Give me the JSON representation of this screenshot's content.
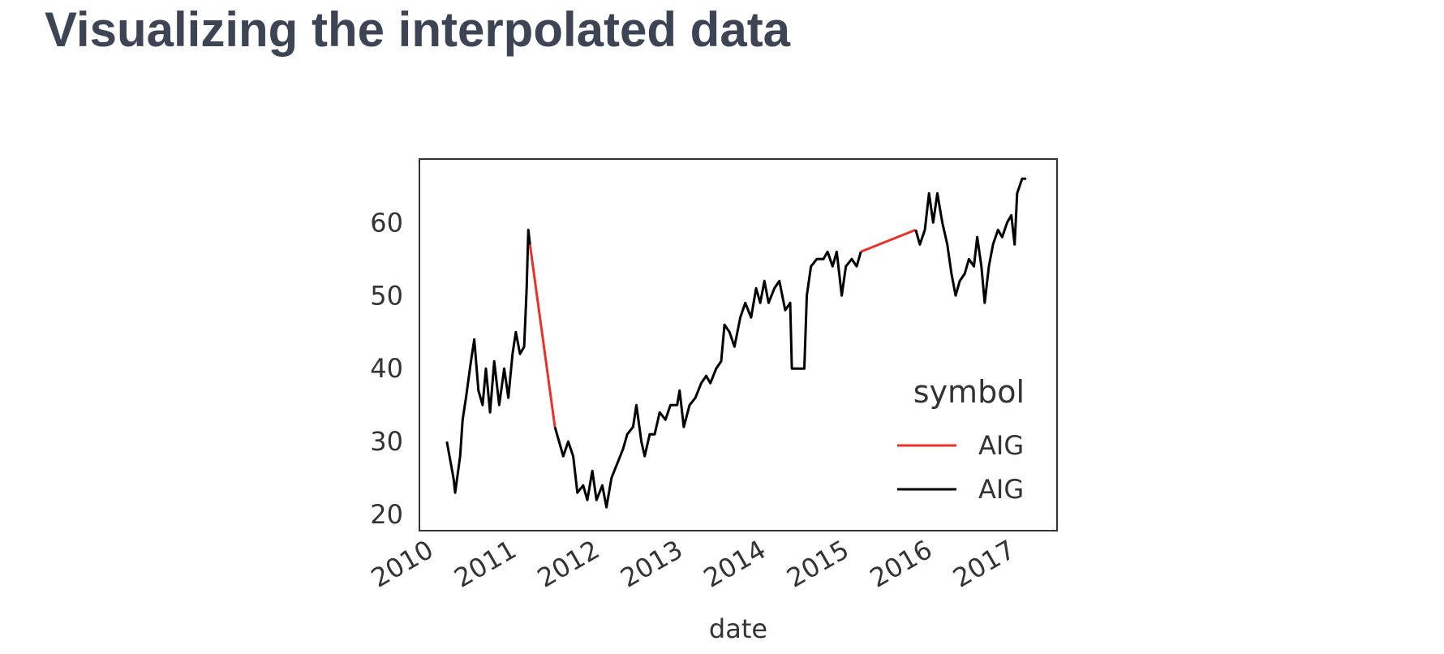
{
  "header": {
    "title": "Visualizing the interpolated data"
  },
  "chart_data": {
    "type": "line",
    "x_label": "date",
    "legend_title": "symbol",
    "legend": "lower right",
    "grid": false,
    "xlim": [
      2009.81,
      2017.48
    ],
    "ylim": [
      17.8,
      68.7
    ],
    "xticks": [
      2010,
      2011,
      2012,
      2013,
      2014,
      2015,
      2016,
      2017
    ],
    "yticks": [
      20,
      30,
      40,
      50,
      60
    ],
    "x": [
      2010.14,
      2010.22,
      2010.24,
      2010.3,
      2010.33,
      2010.37,
      2010.43,
      2010.47,
      2010.52,
      2010.57,
      2010.61,
      2010.66,
      2010.71,
      2010.77,
      2010.83,
      2010.88,
      2010.93,
      2010.97,
      2011.02,
      2011.07,
      2011.1,
      2011.12,
      2011.14,
      2011.29,
      2011.44,
      2011.49,
      2011.54,
      2011.6,
      2011.66,
      2011.71,
      2011.78,
      2011.83,
      2011.89,
      2011.94,
      2012.01,
      2012.06,
      2012.12,
      2012.19,
      2012.26,
      2012.31,
      2012.38,
      2012.42,
      2012.48,
      2012.52,
      2012.58,
      2012.64,
      2012.7,
      2012.77,
      2012.83,
      2012.91,
      2012.94,
      2012.99,
      2013.06,
      2013.13,
      2013.2,
      2013.26,
      2013.31,
      2013.38,
      2013.44,
      2013.48,
      2013.54,
      2013.6,
      2013.67,
      2013.73,
      2013.8,
      2013.86,
      2013.91,
      2013.96,
      2014.01,
      2014.08,
      2014.14,
      2014.21,
      2014.27,
      2014.29,
      2014.44,
      2014.47,
      2014.52,
      2014.59,
      2014.67,
      2014.72,
      2014.78,
      2014.83,
      2014.89,
      2014.94,
      2015.01,
      2015.07,
      2015.12,
      2015.45,
      2015.78,
      2015.83,
      2015.89,
      2015.94,
      2015.99,
      2016.04,
      2016.1,
      2016.16,
      2016.21,
      2016.26,
      2016.31,
      2016.37,
      2016.42,
      2016.48,
      2016.52,
      2016.57,
      2016.61,
      2016.66,
      2016.71,
      2016.77,
      2016.82,
      2016.88,
      2016.93,
      2016.97,
      2017.0,
      2017.06,
      2017.11
    ],
    "series": [
      {
        "name": "AIG",
        "color": "#e8312a",
        "values": [
          null,
          null,
          null,
          null,
          null,
          null,
          null,
          null,
          null,
          null,
          null,
          null,
          null,
          null,
          null,
          null,
          null,
          null,
          null,
          null,
          null,
          null,
          57,
          44.5,
          32,
          null,
          null,
          null,
          null,
          null,
          null,
          null,
          null,
          null,
          null,
          null,
          null,
          null,
          null,
          null,
          null,
          null,
          null,
          null,
          null,
          null,
          null,
          null,
          null,
          null,
          null,
          null,
          null,
          null,
          null,
          null,
          null,
          null,
          null,
          null,
          null,
          null,
          null,
          null,
          null,
          null,
          null,
          null,
          null,
          null,
          null,
          null,
          null,
          null,
          null,
          null,
          null,
          null,
          null,
          null,
          null,
          null,
          null,
          null,
          null,
          null,
          56,
          57.5,
          59,
          null,
          null,
          null,
          null,
          null,
          null,
          null,
          null,
          null,
          null,
          null,
          null,
          null,
          null,
          null,
          null,
          null,
          null,
          null,
          null,
          null,
          null,
          null,
          null,
          null,
          null
        ]
      },
      {
        "name": "AIG",
        "color": "#000000",
        "values": [
          30,
          25,
          23,
          28,
          33,
          36,
          41,
          44,
          37,
          35,
          40,
          34,
          41,
          35,
          40,
          36,
          42,
          45,
          42,
          43,
          51,
          59,
          57,
          null,
          32,
          30,
          28,
          30,
          28,
          23,
          24,
          22,
          26,
          22,
          24,
          21,
          25,
          27,
          29,
          31,
          32,
          35,
          30,
          28,
          31,
          31,
          34,
          33,
          35,
          35,
          37,
          32,
          35,
          36,
          38,
          39,
          38,
          40,
          41,
          46,
          45,
          43,
          47,
          49,
          47,
          51,
          49,
          52,
          49,
          51,
          52,
          48,
          49,
          40,
          40,
          50,
          54,
          55,
          55,
          56,
          54,
          56,
          50,
          54,
          55,
          54,
          56,
          null,
          59,
          57,
          59,
          64,
          60,
          64,
          60,
          57,
          53,
          50,
          52,
          53,
          55,
          54,
          58,
          54,
          49,
          54,
          57,
          59,
          58,
          60,
          61,
          57,
          64,
          66,
          66
        ]
      }
    ]
  }
}
